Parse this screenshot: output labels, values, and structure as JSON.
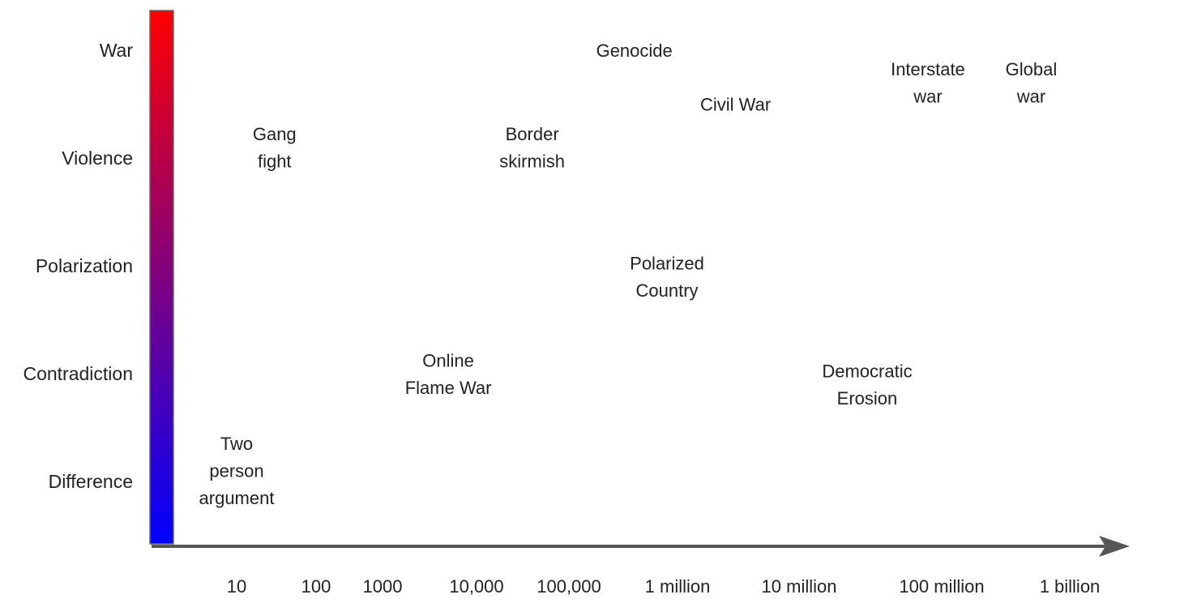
{
  "chart_data": {
    "type": "scatter",
    "title": "",
    "xlabel": "",
    "ylabel": "",
    "xscale": "log",
    "grid": false,
    "legend": "none",
    "y_levels": [
      "Difference",
      "Contradiction",
      "Polarization",
      "Violence",
      "War"
    ],
    "x_ticks": [
      {
        "value": 10,
        "label": "10"
      },
      {
        "value": 100,
        "label": "100"
      },
      {
        "value": 1000,
        "label": "1000"
      },
      {
        "value": 10000,
        "label": "10,000"
      },
      {
        "value": 100000,
        "label": "100,000"
      },
      {
        "value": 1000000,
        "label": "1 million"
      },
      {
        "value": 10000000,
        "label": "10 million"
      },
      {
        "value": 100000000,
        "label": "100 million"
      },
      {
        "value": 1000000000,
        "label": "1 billion"
      }
    ],
    "points": [
      {
        "lines": [
          "Two",
          "person",
          "argument"
        ],
        "x": 10,
        "y": 0.1
      },
      {
        "lines": [
          "Online",
          "Flame War"
        ],
        "x": 5000,
        "y": 1.0
      },
      {
        "lines": [
          "Gang",
          "fight"
        ],
        "x": 30,
        "y": 3.1
      },
      {
        "lines": [
          "Border",
          "skirmish"
        ],
        "x": 40000,
        "y": 3.1
      },
      {
        "lines": [
          "Genocide"
        ],
        "x": 400000,
        "y": 4.0
      },
      {
        "lines": [
          "Polarized",
          "Country"
        ],
        "x": 800000,
        "y": 1.9
      },
      {
        "lines": [
          "Civil War"
        ],
        "x": 3000000,
        "y": 3.5
      },
      {
        "lines": [
          "Democratic",
          "Erosion"
        ],
        "x": 30000000,
        "y": 0.9
      },
      {
        "lines": [
          "Interstate",
          "war"
        ],
        "x": 80000000,
        "y": 3.7
      },
      {
        "lines": [
          "Global",
          "war"
        ],
        "x": 500000000,
        "y": 3.7
      }
    ],
    "colors": {
      "axis": "#555555",
      "gradient_top": "#ff0000",
      "gradient_bottom": "#0000ff",
      "text": "#222222"
    }
  }
}
